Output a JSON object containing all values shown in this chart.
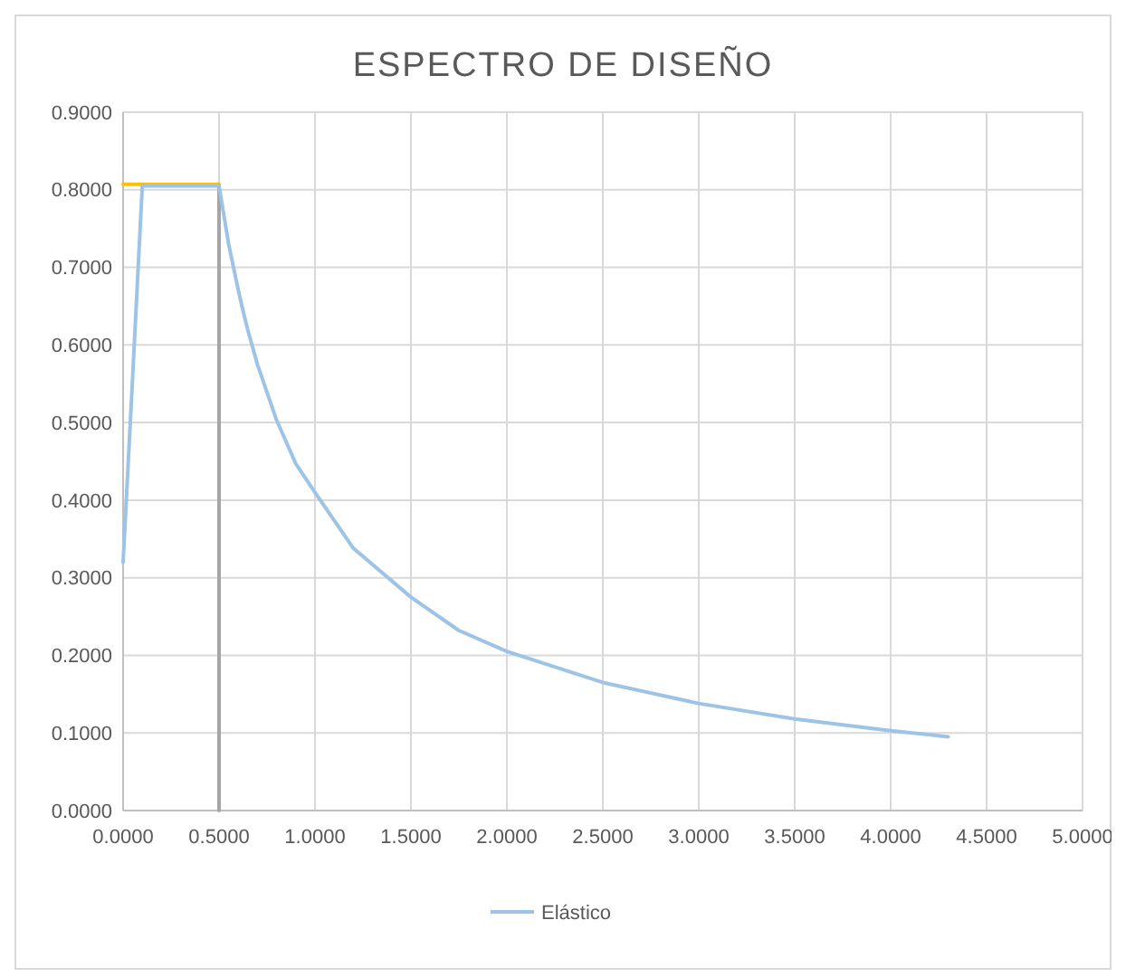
{
  "chart_data": {
    "type": "line",
    "title": "ESPECTRO DE DISEÑO",
    "xlim": [
      0,
      5
    ],
    "xticks": [
      {
        "value": 0,
        "label": "0.0000"
      },
      {
        "value": 0.5,
        "label": "0.5000"
      },
      {
        "value": 1,
        "label": "1.0000"
      },
      {
        "value": 1.5,
        "label": "1.5000"
      },
      {
        "value": 2,
        "label": "2.0000"
      },
      {
        "value": 2.5,
        "label": "2.5000"
      },
      {
        "value": 3,
        "label": "3.0000"
      },
      {
        "value": 3.5,
        "label": "3.5000"
      },
      {
        "value": 4,
        "label": "4.0000"
      },
      {
        "value": 4.5,
        "label": "4.5000"
      },
      {
        "value": 5,
        "label": "5.0000"
      }
    ],
    "ylim": [
      0,
      0.9
    ],
    "yticks": [
      {
        "value": 0,
        "label": "0.0000"
      },
      {
        "value": 0.1,
        "label": "0.1000"
      },
      {
        "value": 0.2,
        "label": "0.2000"
      },
      {
        "value": 0.3,
        "label": "0.3000"
      },
      {
        "value": 0.4,
        "label": "0.4000"
      },
      {
        "value": 0.5,
        "label": "0.5000"
      },
      {
        "value": 0.6,
        "label": "0.6000"
      },
      {
        "value": 0.7,
        "label": "0.7000"
      },
      {
        "value": 0.8,
        "label": "0.8000"
      },
      {
        "value": 0.9,
        "label": "0.9000"
      }
    ],
    "grid": true,
    "legend": "bottom",
    "marker": "none",
    "line_style": "solid",
    "series": [
      {
        "color": "#a5a5a5",
        "x": [
          0.5,
          0.5
        ],
        "values": [
          0,
          0.805
        ]
      },
      {
        "color": "#ffc000",
        "x": [
          0,
          0.5
        ],
        "values": [
          0.807,
          0.807
        ]
      },
      {
        "name": "Elástico",
        "color": "#9dc3e6",
        "x": [
          0,
          0.05,
          0.1,
          0.2,
          0.3,
          0.4,
          0.5,
          0.55,
          0.6,
          0.62,
          0.65,
          0.7,
          0.8,
          0.9,
          1.0,
          1.2,
          1.5,
          1.75,
          2.0,
          2.5,
          3.0,
          3.5,
          4.0,
          4.3
        ],
        "values": [
          0.32,
          0.56,
          0.805,
          0.805,
          0.805,
          0.805,
          0.805,
          0.73,
          0.671,
          0.649,
          0.619,
          0.575,
          0.503,
          0.447,
          0.41,
          0.338,
          0.275,
          0.232,
          0.205,
          0.165,
          0.138,
          0.118,
          0.103,
          0.095
        ]
      }
    ]
  }
}
